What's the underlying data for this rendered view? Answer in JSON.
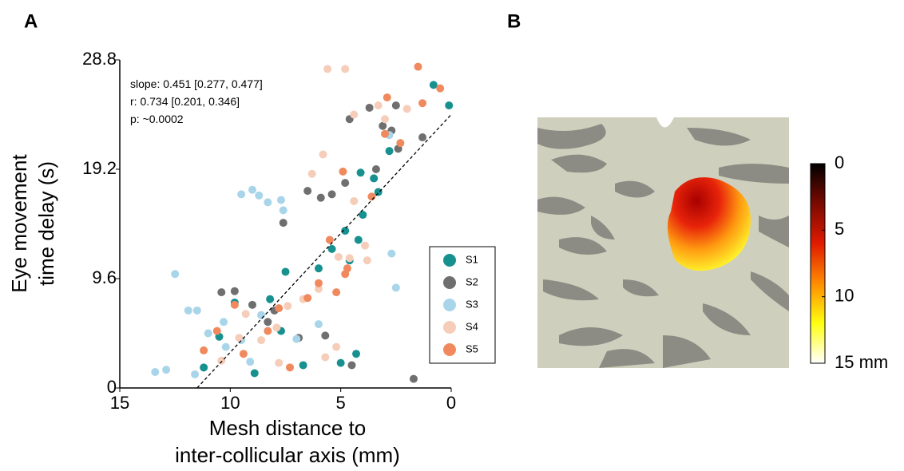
{
  "panel_labels": [
    "A",
    "B"
  ],
  "chart_data": [
    {
      "type": "scatter",
      "xlabel": [
        "Mesh distance to",
        "inter-collicular axis (mm)"
      ],
      "ylabel": [
        "Eye movement",
        "time delay (s)"
      ],
      "annotations": [
        "slope: 0.451 [0.277, 0.477]",
        "r: 0.734 [0.201, 0.346]",
        "p: ~0.0002"
      ],
      "xlim": [
        15,
        0
      ],
      "xticks": [
        15,
        10,
        5,
        0
      ],
      "ylim": [
        0,
        28.8
      ],
      "yticks": [
        0,
        9.6,
        19.2,
        28.8
      ],
      "legend": "lower right",
      "fit_line": {
        "color": "#000000",
        "x": [
          11.5,
          0
        ],
        "y": [
          0,
          24
        ]
      },
      "series": [
        {
          "name": "S1",
          "color": "#17918f",
          "x": [
            0.1,
            0.8,
            2.8,
            3.5,
            4.0,
            4.2,
            4.6,
            4.8,
            5.4,
            6.0,
            7.5,
            8.2,
            9.8,
            10.5,
            11.2,
            8.9,
            7.7,
            4.3,
            5.0,
            6.7,
            3.3,
            4.1
          ],
          "values": [
            24.8,
            26.6,
            20.8,
            18.4,
            15.2,
            13.0,
            11.2,
            13.8,
            12.2,
            10.5,
            10.2,
            7.8,
            7.5,
            4.5,
            1.8,
            1.3,
            5.0,
            3.0,
            2.2,
            2.0,
            17.2,
            18.9
          ]
        },
        {
          "name": "S2",
          "color": "#6f6f6f",
          "x": [
            1.3,
            1.7,
            2.5,
            2.4,
            3.1,
            3.7,
            4.6,
            4.8,
            5.4,
            5.9,
            7.6,
            6.5,
            8.0,
            8.3,
            9.0,
            9.8,
            10.4,
            5.7,
            6.9,
            4.5,
            3.4,
            2.7
          ],
          "values": [
            22.0,
            0.8,
            24.8,
            21.0,
            23.0,
            24.6,
            23.6,
            18.0,
            17.0,
            16.7,
            14.5,
            17.3,
            6.8,
            5.8,
            7.3,
            8.5,
            8.4,
            4.6,
            4.4,
            2.0,
            19.2,
            22.6
          ]
        },
        {
          "name": "S3",
          "color": "#a9d5ea",
          "x": [
            2.8,
            2.7,
            9.0,
            9.5,
            8.7,
            8.3,
            7.7,
            7.6,
            12.5,
            11.9,
            11.5,
            10.3,
            11.0,
            9.5,
            10.2,
            12.9,
            13.4,
            11.6,
            8.6,
            6.0,
            7.0,
            9.1,
            2.5
          ],
          "values": [
            22.2,
            11.8,
            17.4,
            17.0,
            16.9,
            16.3,
            16.5,
            15.6,
            10.0,
            6.8,
            6.8,
            5.8,
            4.8,
            4.2,
            3.6,
            1.6,
            1.4,
            1.2,
            6.4,
            5.6,
            4.3,
            2.3,
            8.8
          ]
        },
        {
          "name": "S4",
          "color": "#f5cdb9",
          "x": [
            4.8,
            5.6,
            3.3,
            3.0,
            4.4,
            2.0,
            5.8,
            6.3,
            4.4,
            4.6,
            3.8,
            5.1,
            6.0,
            6.7,
            7.4,
            7.9,
            8.6,
            9.3,
            9.6,
            10.4,
            7.8,
            5.2,
            5.7,
            3.9
          ],
          "values": [
            28.0,
            28.0,
            24.8,
            23.6,
            24.0,
            24.5,
            20.5,
            18.8,
            16.4,
            11.4,
            11.2,
            11.5,
            8.7,
            7.8,
            7.2,
            5.3,
            4.2,
            6.5,
            4.4,
            2.4,
            2.2,
            3.6,
            2.7,
            12.5
          ]
        },
        {
          "name": "S5",
          "color": "#f08a5e",
          "x": [
            1.5,
            0.5,
            1.3,
            2.3,
            3.0,
            3.6,
            4.9,
            5.5,
            4.7,
            5.2,
            6.0,
            6.5,
            7.8,
            9.8,
            10.6,
            8.3,
            9.4,
            11.2,
            7.3,
            4.8,
            2.9
          ],
          "values": [
            28.2,
            26.3,
            25.0,
            21.5,
            22.3,
            16.8,
            19.0,
            13.0,
            10.5,
            8.4,
            9.2,
            7.9,
            7.0,
            7.3,
            5.0,
            5.0,
            3.0,
            3.3,
            1.8,
            10.0,
            25.5
          ]
        }
      ]
    },
    {
      "type": "colorbar",
      "ylim": [
        0,
        15
      ],
      "yticks": [
        0,
        5,
        10,
        {
          "value": 15,
          "label": "15 mm"
        }
      ]
    }
  ]
}
